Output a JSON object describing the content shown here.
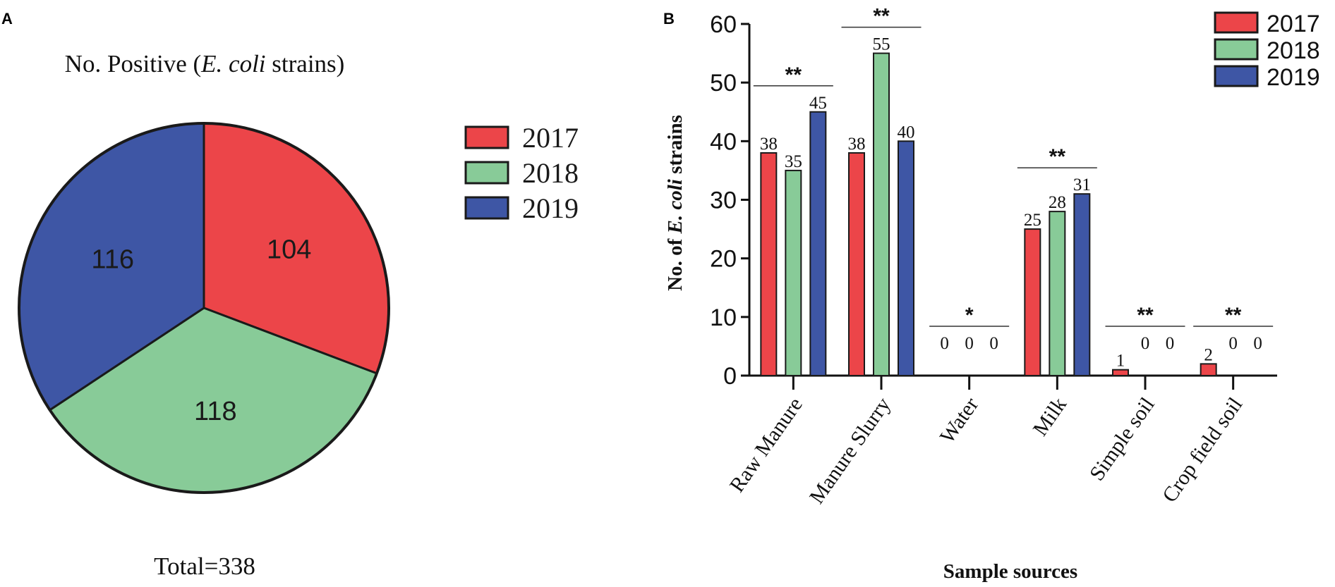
{
  "panel_a": {
    "letter": "A",
    "total_label": "Total=338",
    "chart_data": {
      "type": "pie",
      "title_prefix": "No. Positive (",
      "title_italic": "E. coli",
      "title_suffix": " strains)",
      "categories": [
        "2017",
        "2018",
        "2019"
      ],
      "values": [
        104,
        118,
        116
      ],
      "colors": [
        "#ec4549",
        "#88cb98",
        "#3e56a5"
      ],
      "legend_position": "right"
    }
  },
  "panel_b": {
    "letter": "B",
    "chart_data": {
      "type": "bar",
      "categories": [
        "Raw Manure",
        "Manure Slurry",
        "Water",
        "Milk",
        "Simple soil",
        "Crop field soil"
      ],
      "series": [
        {
          "name": "2017",
          "values": [
            38,
            38,
            0,
            25,
            1,
            2
          ],
          "color": "#ec4549"
        },
        {
          "name": "2018",
          "values": [
            35,
            55,
            0,
            28,
            0,
            0
          ],
          "color": "#88cb98"
        },
        {
          "name": "2019",
          "values": [
            45,
            40,
            0,
            31,
            0,
            0
          ],
          "color": "#3e56a5"
        }
      ],
      "significance": [
        "**",
        "**",
        "*",
        "**",
        "**",
        "**"
      ],
      "ylabel_prefix": "No. of ",
      "ylabel_italic": "E. coli",
      "ylabel_suffix": " strains",
      "xlabel": "Sample sources",
      "ylim": [
        0,
        60
      ],
      "yticks": [
        0,
        10,
        20,
        30,
        40,
        50,
        60
      ],
      "legend_position": "top-right"
    }
  }
}
